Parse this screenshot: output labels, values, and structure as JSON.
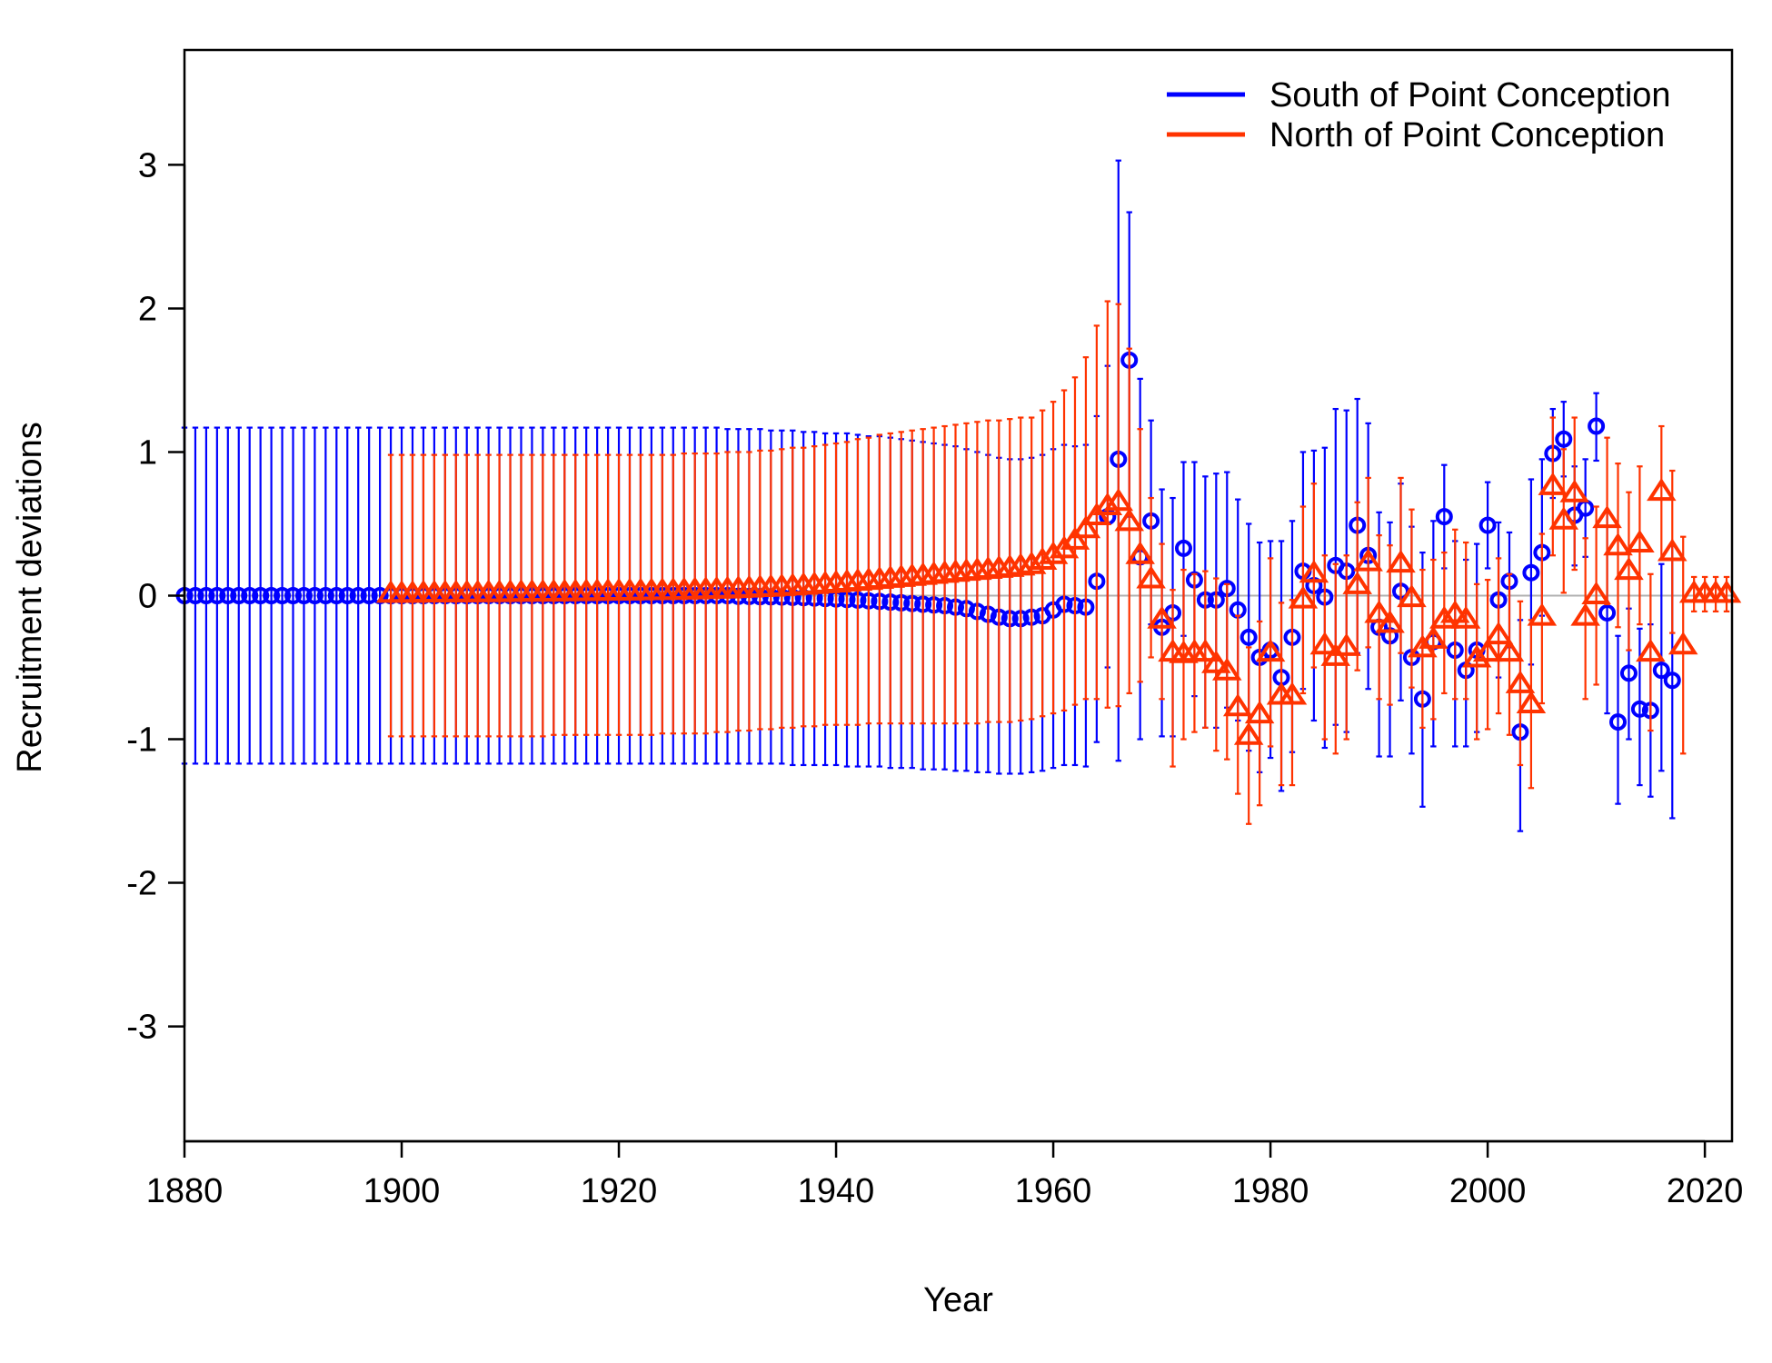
{
  "chart_data": {
    "type": "scatter",
    "title": "",
    "xlabel": "Year",
    "ylabel": "Recruitment deviations",
    "xlim": [
      1880,
      2022.5
    ],
    "ylim": [
      -3.8,
      3.8
    ],
    "x_ticks": [
      1880,
      1900,
      1920,
      1940,
      1960,
      1980,
      2000,
      2020
    ],
    "y_ticks": [
      -3,
      -2,
      -1,
      0,
      1,
      2,
      3
    ],
    "x_tick_labels": [
      "1880",
      "1900",
      "1920",
      "1940",
      "1960",
      "1980",
      "2000",
      "2020"
    ],
    "y_tick_labels": [
      "-3",
      "-2",
      "-1",
      "0",
      "1",
      "2",
      "3"
    ],
    "zero_line": true,
    "grid": false,
    "legend_position": "top-right",
    "series": [
      {
        "name": "South of Point Conception",
        "color": "#0000ff",
        "marker": "circle",
        "x_start": 1880,
        "values": [
          0,
          0,
          0,
          0,
          0,
          0,
          0,
          0,
          0,
          0,
          0,
          0,
          0,
          0,
          0,
          0,
          0,
          0,
          0,
          0,
          0,
          0,
          0,
          0,
          0,
          0,
          0,
          0,
          0,
          0,
          0,
          0,
          0,
          0,
          0,
          0,
          0,
          0,
          0,
          0,
          0,
          0,
          0,
          0,
          0,
          0,
          0,
          0,
          0,
          0,
          0,
          -0.005,
          -0.006,
          -0.007,
          -0.008,
          -0.01,
          -0.012,
          -0.014,
          -0.017,
          -0.02,
          -0.023,
          -0.027,
          -0.031,
          -0.036,
          -0.04,
          -0.045,
          -0.05,
          -0.055,
          -0.06,
          -0.065,
          -0.07,
          -0.08,
          -0.09,
          -0.11,
          -0.13,
          -0.15,
          -0.16,
          -0.16,
          -0.15,
          -0.14,
          -0.1,
          -0.06,
          -0.07,
          -0.08,
          0.1,
          0.55,
          0.95,
          1.64,
          0.27,
          0.52,
          -0.22,
          -0.12,
          0.33,
          0.11,
          -0.03,
          -0.03,
          0.05,
          -0.1,
          -0.29,
          -0.43,
          -0.38,
          -0.57,
          -0.29,
          0.17,
          0.07,
          -0.01,
          0.21,
          0.17,
          0.49,
          0.28,
          -0.22,
          -0.28,
          0.03,
          -0.43,
          -0.72,
          -0.32,
          0.55,
          -0.38,
          -0.52,
          -0.38,
          0.49,
          -0.03,
          0.1,
          -0.95,
          0.16,
          0.3,
          0.99,
          1.09,
          0.56,
          0.61,
          1.18,
          -0.12,
          -0.88,
          -0.54,
          -0.79,
          -0.8,
          -0.52,
          -0.59
        ],
        "upper": [
          1.17,
          1.17,
          1.17,
          1.17,
          1.17,
          1.17,
          1.17,
          1.17,
          1.17,
          1.17,
          1.17,
          1.17,
          1.17,
          1.17,
          1.17,
          1.17,
          1.17,
          1.17,
          1.17,
          1.17,
          1.17,
          1.17,
          1.17,
          1.17,
          1.17,
          1.17,
          1.17,
          1.17,
          1.17,
          1.17,
          1.17,
          1.17,
          1.17,
          1.17,
          1.17,
          1.17,
          1.17,
          1.17,
          1.17,
          1.17,
          1.17,
          1.17,
          1.17,
          1.17,
          1.17,
          1.17,
          1.17,
          1.17,
          1.17,
          1.17,
          1.16,
          1.16,
          1.16,
          1.16,
          1.15,
          1.15,
          1.15,
          1.14,
          1.14,
          1.13,
          1.13,
          1.13,
          1.12,
          1.11,
          1.11,
          1.1,
          1.09,
          1.08,
          1.07,
          1.06,
          1.05,
          1.04,
          1.02,
          1.0,
          0.98,
          0.96,
          0.95,
          0.95,
          0.96,
          0.98,
          1.02,
          1.05,
          1.04,
          1.05,
          1.25,
          1.6,
          3.03,
          2.67,
          1.51,
          1.22,
          0.74,
          0.68,
          0.93,
          0.93,
          0.83,
          0.85,
          0.86,
          0.67,
          0.5,
          0.37,
          0.38,
          0.38,
          0.52,
          1.0,
          1.01,
          1.03,
          1.3,
          1.29,
          1.37,
          1.2,
          0.58,
          0.51,
          0.78,
          0.48,
          0.3,
          0.52,
          0.91,
          0.38,
          0.25,
          0.36,
          0.79,
          0.51,
          0.44,
          -0.17,
          0.81,
          0.95,
          1.3,
          1.35,
          0.9,
          0.95,
          1.41,
          0.58,
          -0.28,
          -0.09,
          -0.23,
          -0.2,
          0.22,
          0.35
        ],
        "lower": [
          -1.17,
          -1.17,
          -1.17,
          -1.17,
          -1.17,
          -1.17,
          -1.17,
          -1.17,
          -1.17,
          -1.17,
          -1.17,
          -1.17,
          -1.17,
          -1.17,
          -1.17,
          -1.17,
          -1.17,
          -1.17,
          -1.17,
          -1.17,
          -1.17,
          -1.17,
          -1.17,
          -1.17,
          -1.17,
          -1.17,
          -1.17,
          -1.17,
          -1.17,
          -1.17,
          -1.17,
          -1.17,
          -1.17,
          -1.17,
          -1.17,
          -1.17,
          -1.17,
          -1.17,
          -1.17,
          -1.17,
          -1.17,
          -1.17,
          -1.17,
          -1.17,
          -1.17,
          -1.17,
          -1.17,
          -1.17,
          -1.17,
          -1.17,
          -1.17,
          -1.17,
          -1.17,
          -1.17,
          -1.17,
          -1.17,
          -1.18,
          -1.18,
          -1.18,
          -1.18,
          -1.18,
          -1.19,
          -1.19,
          -1.19,
          -1.19,
          -1.2,
          -1.2,
          -1.2,
          -1.21,
          -1.21,
          -1.21,
          -1.22,
          -1.22,
          -1.23,
          -1.23,
          -1.24,
          -1.24,
          -1.24,
          -1.23,
          -1.22,
          -1.2,
          -1.18,
          -1.18,
          -1.19,
          -1.02,
          -0.5,
          -1.15,
          0.55,
          -1.0,
          -0.2,
          -0.98,
          -0.98,
          -0.28,
          -0.7,
          -0.92,
          -0.92,
          -0.78,
          -0.87,
          -1.08,
          -1.23,
          -1.13,
          -1.36,
          -1.09,
          -0.65,
          -0.87,
          -1.06,
          -0.9,
          -0.95,
          -0.4,
          -0.65,
          -1.12,
          -1.12,
          -0.73,
          -1.1,
          -1.47,
          -1.05,
          0.19,
          -1.05,
          -1.05,
          -0.95,
          0.19,
          -0.57,
          -0.36,
          -1.64,
          -0.48,
          -0.14,
          0.68,
          0.83,
          0.21,
          0.27,
          0.94,
          -0.82,
          -1.45,
          -1.0,
          -1.32,
          -1.4,
          -1.22,
          -1.55
        ]
      },
      {
        "name": "North of Point Conception",
        "color": "#ff3300",
        "marker": "triangle",
        "x_start": 1899,
        "values": [
          0.01,
          0.01,
          0.01,
          0.012,
          0.012,
          0.013,
          0.013,
          0.014,
          0.014,
          0.015,
          0.015,
          0.016,
          0.017,
          0.018,
          0.018,
          0.019,
          0.02,
          0.021,
          0.022,
          0.023,
          0.024,
          0.025,
          0.026,
          0.027,
          0.028,
          0.029,
          0.03,
          0.032,
          0.034,
          0.036,
          0.038,
          0.04,
          0.043,
          0.046,
          0.05,
          0.053,
          0.057,
          0.061,
          0.066,
          0.071,
          0.076,
          0.082,
          0.088,
          0.094,
          0.1,
          0.107,
          0.114,
          0.121,
          0.128,
          0.135,
          0.142,
          0.149,
          0.156,
          0.163,
          0.17,
          0.177,
          0.184,
          0.19,
          0.2,
          0.21,
          0.24,
          0.28,
          0.32,
          0.38,
          0.46,
          0.55,
          0.62,
          0.65,
          0.51,
          0.28,
          0.11,
          -0.17,
          -0.4,
          -0.41,
          -0.4,
          -0.4,
          -0.48,
          -0.53,
          -0.78,
          -0.98,
          -0.83,
          -0.4,
          -0.7,
          -0.7,
          -0.03,
          0.15,
          -0.35,
          -0.43,
          -0.36,
          0.07,
          0.23,
          -0.13,
          -0.2,
          0.22,
          -0.02,
          -0.37,
          -0.31,
          -0.17,
          -0.13,
          -0.17,
          -0.44,
          -0.4,
          -0.28,
          -0.4,
          -0.62,
          -0.76,
          -0.15,
          0.76,
          0.52,
          0.71,
          -0.15,
          0.0,
          0.53,
          0.34,
          0.17,
          0.36,
          -0.4,
          0.72,
          0.3,
          -0.35,
          0.01,
          0.01,
          0.01,
          0.01
        ],
        "upper": [
          0.98,
          0.98,
          0.98,
          0.98,
          0.98,
          0.98,
          0.98,
          0.98,
          0.98,
          0.98,
          0.98,
          0.98,
          0.98,
          0.98,
          0.98,
          0.98,
          0.98,
          0.98,
          0.98,
          0.98,
          0.98,
          0.98,
          0.98,
          0.98,
          0.98,
          0.98,
          0.98,
          0.99,
          0.99,
          0.99,
          0.99,
          1.0,
          1.0,
          1.0,
          1.01,
          1.01,
          1.02,
          1.03,
          1.03,
          1.04,
          1.05,
          1.06,
          1.07,
          1.09,
          1.1,
          1.12,
          1.13,
          1.14,
          1.15,
          1.16,
          1.17,
          1.18,
          1.19,
          1.2,
          1.21,
          1.22,
          1.22,
          1.23,
          1.24,
          1.24,
          1.29,
          1.35,
          1.43,
          1.52,
          1.66,
          1.88,
          2.05,
          2.03,
          1.72,
          1.16,
          0.68,
          0.36,
          0.04,
          0.18,
          0.15,
          0.17,
          0.12,
          0.08,
          -0.14,
          -0.36,
          -0.18,
          0.26,
          -0.05,
          -0.03,
          0.62,
          0.78,
          0.28,
          0.22,
          0.28,
          0.65,
          0.82,
          0.42,
          0.35,
          0.82,
          0.6,
          0.18,
          0.25,
          0.3,
          0.46,
          0.37,
          0.08,
          0.11,
          0.26,
          0.15,
          -0.04,
          -0.17,
          0.43,
          1.24,
          1.02,
          1.24,
          0.4,
          0.62,
          1.1,
          0.92,
          0.72,
          0.9,
          0.15,
          1.18,
          0.87,
          0.41,
          0.13,
          0.13,
          0.13,
          0.13
        ],
        "lower": [
          -0.98,
          -0.98,
          -0.98,
          -0.98,
          -0.98,
          -0.98,
          -0.98,
          -0.98,
          -0.98,
          -0.98,
          -0.98,
          -0.98,
          -0.98,
          -0.98,
          -0.98,
          -0.97,
          -0.97,
          -0.97,
          -0.97,
          -0.97,
          -0.97,
          -0.97,
          -0.97,
          -0.97,
          -0.97,
          -0.96,
          -0.96,
          -0.96,
          -0.96,
          -0.96,
          -0.95,
          -0.95,
          -0.94,
          -0.94,
          -0.93,
          -0.93,
          -0.92,
          -0.92,
          -0.91,
          -0.91,
          -0.9,
          -0.9,
          -0.9,
          -0.9,
          -0.89,
          -0.89,
          -0.89,
          -0.89,
          -0.89,
          -0.89,
          -0.89,
          -0.89,
          -0.89,
          -0.89,
          -0.89,
          -0.88,
          -0.88,
          -0.88,
          -0.87,
          -0.86,
          -0.84,
          -0.82,
          -0.8,
          -0.76,
          -0.72,
          -0.72,
          -0.78,
          -0.77,
          -0.68,
          -0.6,
          -0.43,
          -0.72,
          -1.19,
          -1.0,
          -0.95,
          -0.92,
          -1.08,
          -1.14,
          -1.38,
          -1.59,
          -1.46,
          -1.05,
          -1.32,
          -1.32,
          -0.68,
          -0.5,
          -1.0,
          -1.1,
          -1.0,
          -0.52,
          -0.36,
          -0.72,
          -0.76,
          -0.4,
          -0.64,
          -0.92,
          -0.86,
          -0.68,
          -0.72,
          -0.72,
          -1.0,
          -0.93,
          -0.82,
          -0.97,
          -1.18,
          -1.34,
          -0.75,
          0.28,
          0.02,
          0.18,
          -0.72,
          -0.62,
          -0.06,
          -0.22,
          -0.38,
          -0.2,
          -0.94,
          0.25,
          -0.26,
          -1.1,
          -0.11,
          -0.11,
          -0.11,
          -0.11
        ]
      }
    ]
  }
}
